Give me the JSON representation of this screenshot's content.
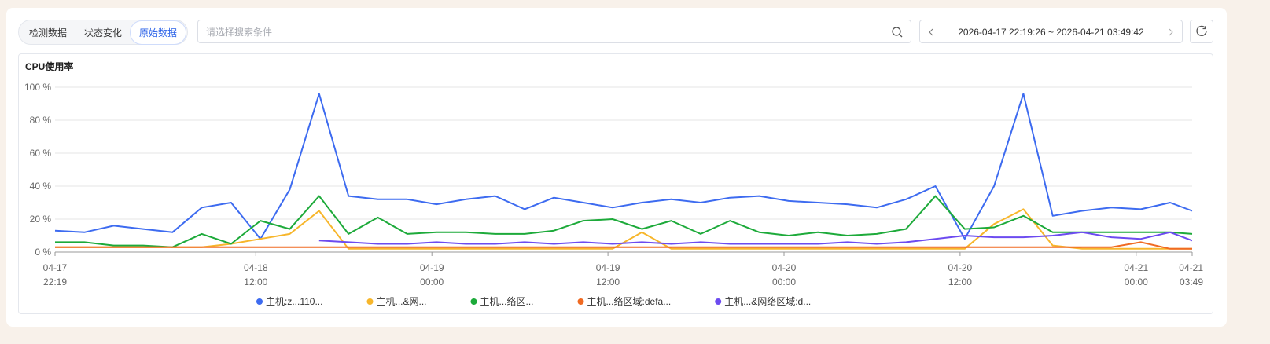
{
  "toolbar": {
    "tabs": [
      "检测数据",
      "状态变化",
      "原始数据"
    ],
    "search_placeholder": "请选择搜索条件",
    "date_range": "2026-04-17 22:19:26 ~ 2026-04-21 03:49:42"
  },
  "chart_data": {
    "type": "line",
    "title": "CPU使用率",
    "x": [
      "2026-04-17 22:19",
      "2026-04-18 00:19",
      "2026-04-18 02:19",
      "2026-04-18 04:19",
      "2026-04-18 06:19",
      "2026-04-18 08:19",
      "2026-04-18 10:19",
      "2026-04-18 12:19",
      "2026-04-18 14:19",
      "2026-04-18 16:19",
      "2026-04-18 18:19",
      "2026-04-18 20:19",
      "2026-04-18 22:19",
      "2026-04-19 00:19",
      "2026-04-19 02:19",
      "2026-04-19 04:19",
      "2026-04-19 06:19",
      "2026-04-19 08:19",
      "2026-04-19 10:19",
      "2026-04-19 12:19",
      "2026-04-19 14:19",
      "2026-04-19 16:19",
      "2026-04-19 18:19",
      "2026-04-19 20:19",
      "2026-04-19 22:19",
      "2026-04-20 00:19",
      "2026-04-20 02:19",
      "2026-04-20 04:19",
      "2026-04-20 06:19",
      "2026-04-20 08:19",
      "2026-04-20 10:19",
      "2026-04-20 12:19",
      "2026-04-20 14:19",
      "2026-04-20 16:19",
      "2026-04-20 18:19",
      "2026-04-20 20:19",
      "2026-04-20 22:19",
      "2026-04-21 00:19",
      "2026-04-21 02:19",
      "2026-04-21 03:49"
    ],
    "series": [
      {
        "name": "主机:z...110...",
        "color": "#3d6bf0",
        "values": [
          13,
          12,
          16,
          14,
          12,
          27,
          30,
          8,
          38,
          96,
          34,
          32,
          32,
          29,
          32,
          34,
          26,
          33,
          30,
          27,
          30,
          32,
          30,
          33,
          34,
          31,
          30,
          29,
          27,
          32,
          40,
          8,
          40,
          96,
          22,
          25,
          27,
          26,
          30,
          25
        ]
      },
      {
        "name": "主机...&网...",
        "color": "#f7b62b",
        "values": [
          3,
          3,
          3,
          3,
          3,
          3,
          5,
          8,
          11,
          25,
          2,
          2,
          2,
          2,
          2,
          2,
          2,
          2,
          2,
          2,
          12,
          2,
          2,
          2,
          2,
          2,
          2,
          2,
          2,
          2,
          2,
          2,
          17,
          26,
          4,
          2,
          2,
          2,
          2,
          2
        ]
      },
      {
        "name": "主机...络区...",
        "color": "#1daa3a",
        "values": [
          6,
          6,
          4,
          4,
          3,
          11,
          5,
          19,
          14,
          34,
          11,
          21,
          11,
          12,
          12,
          11,
          11,
          13,
          19,
          20,
          14,
          19,
          11,
          19,
          12,
          10,
          12,
          10,
          11,
          14,
          34,
          14,
          15,
          22,
          12,
          12,
          12,
          12,
          12,
          11
        ]
      },
      {
        "name": "主机...络区域:defa...",
        "color": "#f06a22",
        "values": [
          3,
          3,
          3,
          3,
          3,
          3,
          3,
          3,
          3,
          3,
          3,
          3,
          3,
          3,
          3,
          3,
          3,
          3,
          3,
          3,
          3,
          3,
          3,
          3,
          3,
          3,
          3,
          3,
          3,
          3,
          3,
          3,
          3,
          3,
          3,
          3,
          3,
          6,
          2,
          2
        ]
      },
      {
        "name": "主机...&网络区域:d...",
        "color": "#6c4bf0",
        "values": [
          null,
          null,
          null,
          null,
          null,
          null,
          null,
          null,
          null,
          7,
          6,
          5,
          5,
          6,
          5,
          5,
          6,
          5,
          6,
          5,
          6,
          5,
          6,
          5,
          5,
          5,
          5,
          6,
          5,
          6,
          8,
          10,
          9,
          9,
          10,
          12,
          9,
          8,
          12,
          7
        ]
      }
    ],
    "xlim": [
      "2026-04-17 22:19",
      "2026-04-21 03:49"
    ],
    "xticks": [
      {
        "value": "2026-04-17 22:19",
        "label": "04-17 22:19"
      },
      {
        "value": "2026-04-18 12:00",
        "label": "04-18 12:00"
      },
      {
        "value": "2026-04-19 00:00",
        "label": "04-19 00:00"
      },
      {
        "value": "2026-04-19 12:00",
        "label": "04-19 12:00"
      },
      {
        "value": "2026-04-20 00:00",
        "label": "04-20 00:00"
      },
      {
        "value": "2026-04-20 12:00",
        "label": "04-20 12:00"
      },
      {
        "value": "2026-04-21 00:00",
        "label": "04-21 00:00"
      },
      {
        "value": "2026-04-21 03:49",
        "label": "04-21 03:49"
      }
    ],
    "ylim": [
      0,
      100
    ],
    "yticks": [
      {
        "value": 0,
        "label": "0 %"
      },
      {
        "value": 20,
        "label": "20 %"
      },
      {
        "value": 40,
        "label": "40 %"
      },
      {
        "value": 60,
        "label": "60 %"
      },
      {
        "value": 80,
        "label": "80 %"
      },
      {
        "value": 100,
        "label": "100 %"
      }
    ],
    "grid": true
  }
}
